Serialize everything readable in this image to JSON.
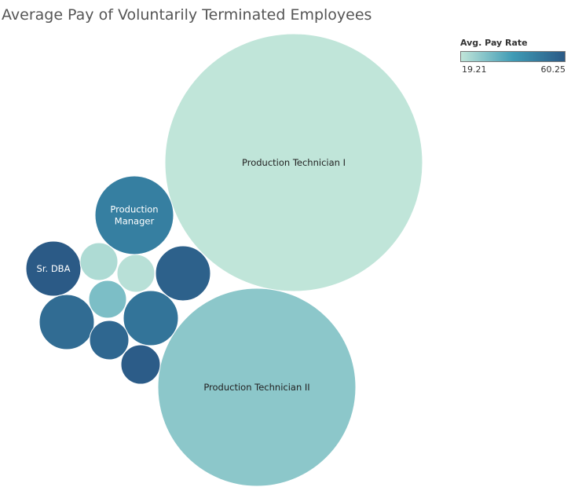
{
  "title": "Average Pay of Voluntarily Terminated Employees",
  "legend": {
    "title": "Avg. Pay Rate",
    "min_label": "19.21",
    "max_label": "60.25",
    "min": 19.21,
    "max": 60.25,
    "colors": [
      "#c0e5d9",
      "#3f9bb5",
      "#2b5a86"
    ]
  },
  "chart_data": {
    "type": "bubble",
    "title": "Average Pay of Voluntarily Terminated Employees",
    "size_measure": "",
    "color_measure": "Avg. Pay Rate",
    "bubbles": [
      {
        "label": "Production Technician I",
        "avg_pay": 19.21,
        "size": 100,
        "show_label": true
      },
      {
        "label": "Production Technician II",
        "avg_pay": 27.5,
        "size": 63,
        "show_label": true
      },
      {
        "label": "Production Manager",
        "avg_pay": 48.5,
        "size": 9.8,
        "show_label": true
      },
      {
        "label": "Sr. DBA",
        "avg_pay": 60.25,
        "size": 5.0,
        "show_label": true
      },
      {
        "label": "",
        "avg_pay": 58.0,
        "size": 4.8,
        "show_label": false
      },
      {
        "label": "",
        "avg_pay": 52.0,
        "size": 4.8,
        "show_label": false
      },
      {
        "label": "",
        "avg_pay": 54.5,
        "size": 4.7,
        "show_label": false
      },
      {
        "label": "",
        "avg_pay": 56.0,
        "size": 2.3,
        "show_label": false
      },
      {
        "label": "",
        "avg_pay": 59.5,
        "size": 2.4,
        "show_label": false
      },
      {
        "label": "",
        "avg_pay": 22.0,
        "size": 2.3,
        "show_label": false
      },
      {
        "label": "",
        "avg_pay": 20.5,
        "size": 2.3,
        "show_label": false
      },
      {
        "label": "",
        "avg_pay": 30.0,
        "size": 2.3,
        "show_label": false
      }
    ]
  }
}
